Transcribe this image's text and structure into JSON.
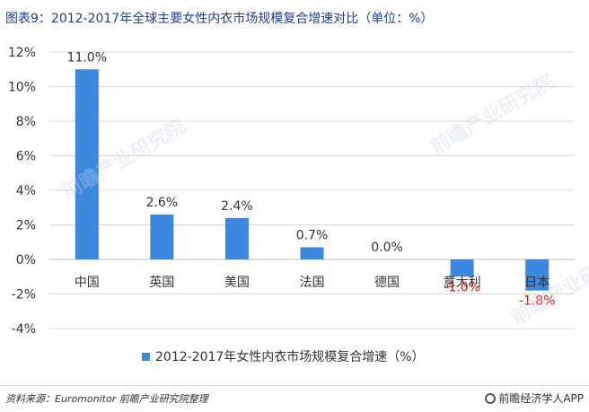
{
  "title": "图表9：2012-2017年全球主要女性内衣市场规模复合增速对比（单位：%）",
  "legend_label": "2012-2017年女性内衣市场规模复合增速（%）",
  "source": "资料来源：Euromonitor 前瞻产业研究院整理",
  "brand": "前瞻经济学人APP",
  "watermark": "前瞻产业研究院",
  "colors": {
    "bar": "#3c87e0",
    "negative_label": "#ff0000",
    "title": "#1f3d99"
  },
  "chart_data": {
    "type": "bar",
    "categories": [
      "中国",
      "英国",
      "美国",
      "法国",
      "德国",
      "意大利",
      "日本"
    ],
    "values": [
      11.0,
      2.6,
      2.4,
      0.7,
      0.0,
      -1.0,
      -1.8
    ],
    "data_labels": [
      "11.0%",
      "2.6%",
      "2.4%",
      "0.7%",
      "0.0%",
      "-1.0%",
      "-1.8%"
    ],
    "yticks": [
      "12%",
      "10%",
      "8%",
      "6%",
      "4%",
      "2%",
      "0%",
      "-2%",
      "-4%"
    ],
    "ylim": [
      -4,
      12
    ],
    "grid": true,
    "legend": "bottom"
  }
}
